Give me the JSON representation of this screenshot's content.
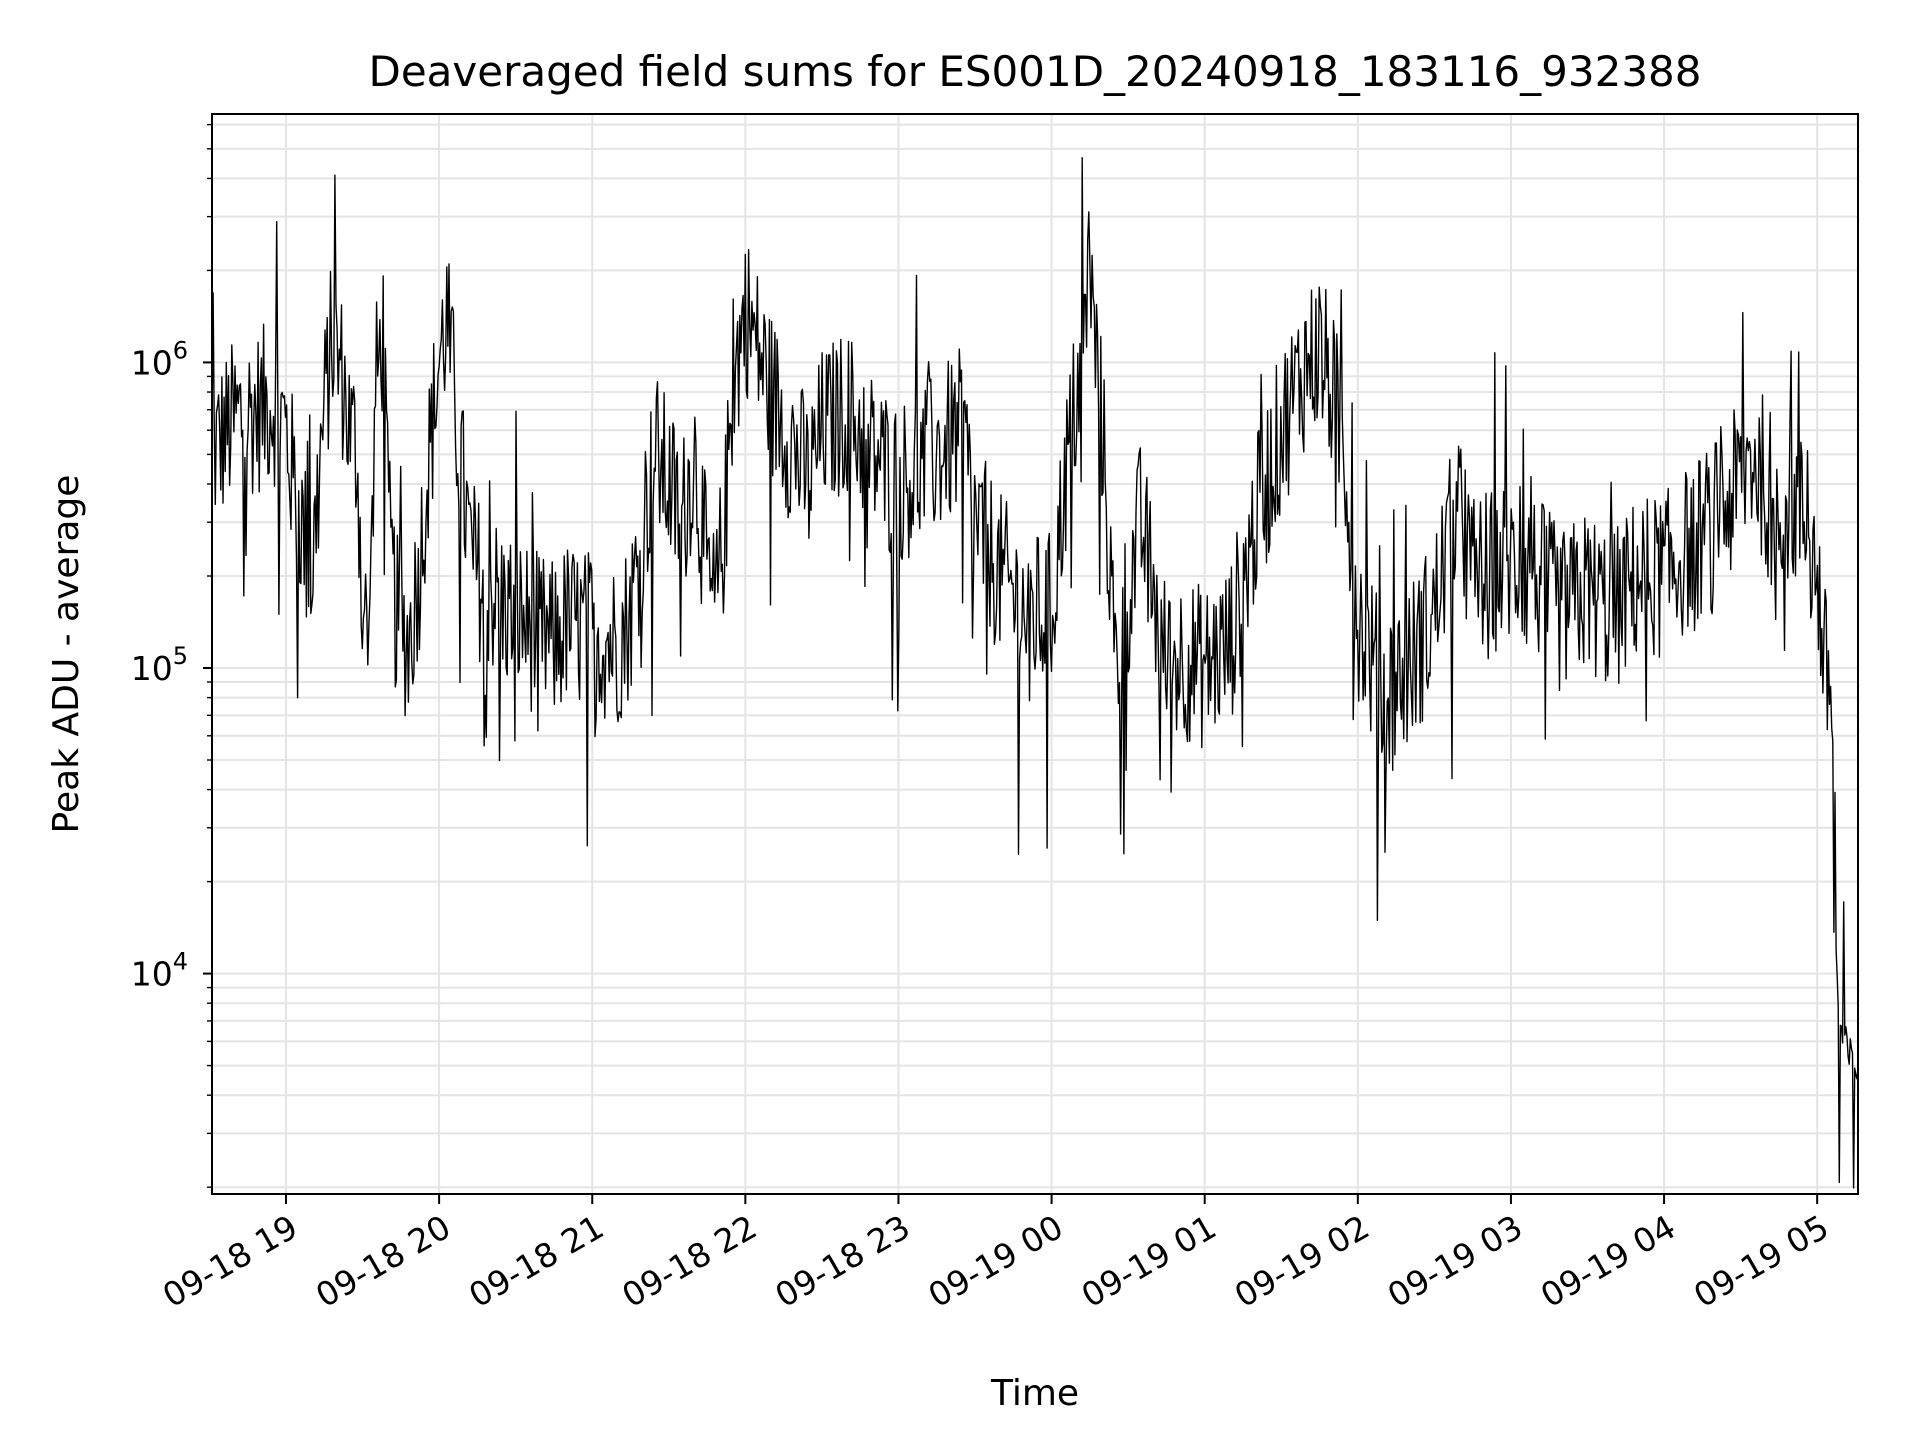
{
  "chart_data": {
    "type": "line",
    "title": "Deaveraged field sums for ES001D_20240918_183116_932388",
    "xlabel": "Time",
    "ylabel": "Peak ADU - average",
    "yscale": "log",
    "ylim": [
      1900,
      6500000
    ],
    "xlim": [
      "09-18 18:31",
      "09-19 05:16"
    ],
    "grid": true,
    "legend": "none",
    "line_color": "#000000",
    "x_ticks": [
      "09-18 19",
      "09-18 20",
      "09-18 21",
      "09-18 22",
      "09-18 23",
      "09-19 00",
      "09-19 01",
      "09-19 02",
      "09-19 03",
      "09-19 04",
      "09-19 05"
    ],
    "y_ticks": [
      {
        "base": "10",
        "exp": "4",
        "value": 10000
      },
      {
        "base": "10",
        "exp": "5",
        "value": 100000
      },
      {
        "base": "10",
        "exp": "6",
        "value": 1000000
      }
    ],
    "series": [
      {
        "x": [
          "09-18 18:31",
          "09-18 18:40",
          "09-18 18:50",
          "09-18 18:55",
          "09-18 19:00",
          "09-18 19:03",
          "09-18 19:06",
          "09-18 19:10",
          "09-18 19:15",
          "09-18 19:18",
          "09-18 19:22",
          "09-18 19:25",
          "09-18 19:28",
          "09-18 19:30",
          "09-18 19:33",
          "09-18 19:35",
          "09-18 19:38",
          "09-18 19:40",
          "09-18 19:43",
          "09-18 19:48",
          "09-18 19:52",
          "09-18 19:55",
          "09-18 20:00",
          "09-18 20:03",
          "09-18 20:08",
          "09-18 20:12",
          "09-18 20:15",
          "09-18 20:20",
          "09-18 20:25",
          "09-18 20:30",
          "09-18 20:38",
          "09-18 20:45",
          "09-18 20:50",
          "09-18 21:00",
          "09-18 21:10",
          "09-18 21:15",
          "09-18 21:20",
          "09-18 21:25",
          "09-18 21:30",
          "09-18 21:35",
          "09-18 21:40",
          "09-18 21:45",
          "09-18 21:48",
          "09-18 21:52",
          "09-18 21:55",
          "09-18 22:00",
          "09-18 22:10",
          "09-18 22:20",
          "09-18 22:25",
          "09-18 22:30",
          "09-18 22:40",
          "09-18 22:50",
          "09-18 23:00",
          "09-18 23:15",
          "09-18 23:25",
          "09-18 23:30",
          "09-18 23:40",
          "09-18 23:50",
          "09-19 00:00",
          "09-19 00:05",
          "09-19 00:10",
          "09-19 00:15",
          "09-19 00:20",
          "09-19 00:25",
          "09-19 00:35",
          "09-19 00:45",
          "09-19 00:50",
          "09-19 01:00",
          "09-19 01:10",
          "09-19 01:20",
          "09-19 01:30",
          "09-19 01:40",
          "09-19 01:45",
          "09-19 01:50",
          "09-19 01:55",
          "09-19 02:00",
          "09-19 02:10",
          "09-19 02:20",
          "09-19 02:30",
          "09-19 02:35",
          "09-19 02:40",
          "09-19 02:45",
          "09-19 03:00",
          "09-19 03:10",
          "09-19 03:20",
          "09-19 03:30",
          "09-19 03:40",
          "09-19 03:50",
          "09-19 04:00",
          "09-19 04:10",
          "09-19 04:20",
          "09-19 04:30",
          "09-19 04:35",
          "09-19 04:40",
          "09-19 04:50",
          "09-19 04:55",
          "09-19 05:00",
          "09-19 05:03",
          "09-19 05:06",
          "09-19 05:08",
          "09-19 05:10",
          "09-19 05:12",
          "09-19 05:14",
          "09-19 05:16"
        ],
        "values": [
          500000,
          650000,
          700000,
          750000,
          600000,
          400000,
          300000,
          200000,
          700000,
          1200000,
          900000,
          600000,
          500000,
          150000,
          120000,
          800000,
          1300000,
          300000,
          150000,
          120000,
          200000,
          400000,
          1000000,
          1400000,
          500000,
          250000,
          200000,
          180000,
          160000,
          150000,
          130000,
          120000,
          140000,
          130000,
          120000,
          150000,
          300000,
          500000,
          400000,
          300000,
          500000,
          200000,
          150000,
          300000,
          800000,
          1500000,
          800000,
          500000,
          400000,
          600000,
          700000,
          500000,
          400000,
          500000,
          600000,
          300000,
          200000,
          150000,
          150000,
          400000,
          800000,
          1800000,
          600000,
          100000,
          300000,
          100000,
          110000,
          100000,
          120000,
          300000,
          600000,
          1000000,
          1100000,
          800000,
          500000,
          150000,
          80000,
          100000,
          150000,
          250000,
          300000,
          200000,
          220000,
          200000,
          150000,
          180000,
          150000,
          200000,
          200000,
          250000,
          300000,
          400000,
          500000,
          400000,
          350000,
          300000,
          200000,
          100000,
          80000,
          8000,
          6000,
          5500,
          5000,
          5000
        ],
        "style": "noisy"
      }
    ]
  }
}
